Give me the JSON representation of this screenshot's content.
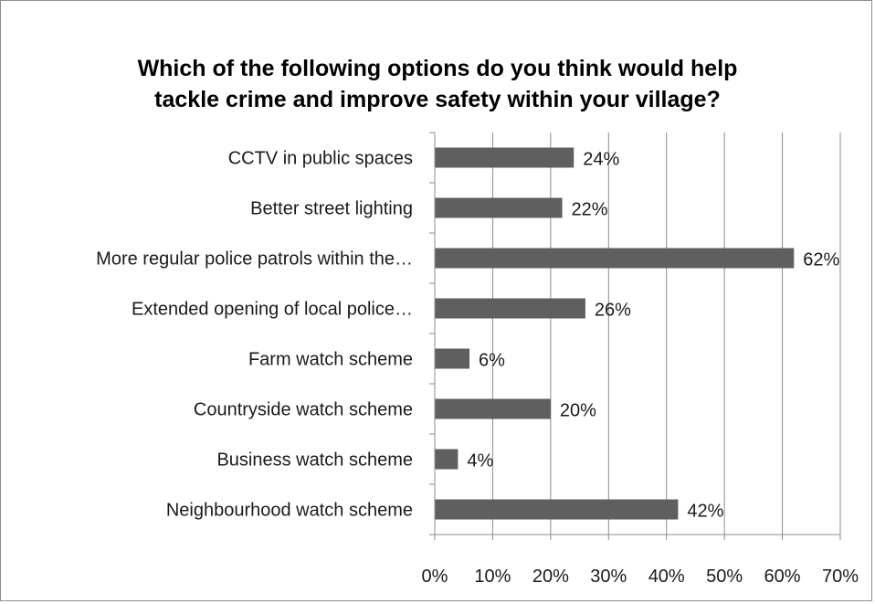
{
  "chart_data": {
    "type": "bar",
    "orientation": "horizontal",
    "title_lines": [
      "Which of the following options do you think would help",
      "tackle crime and improve safety within your village?"
    ],
    "categories": [
      "CCTV in public spaces",
      "Better street lighting",
      "More regular police patrols within the…",
      "Extended opening of local police…",
      "Farm watch scheme",
      "Countryside watch scheme",
      "Business watch scheme",
      "Neighbourhood watch scheme"
    ],
    "values": [
      24,
      22,
      62,
      26,
      6,
      20,
      4,
      42
    ],
    "data_labels": [
      "24%",
      "22%",
      "62%",
      "26%",
      "6%",
      "20%",
      "4%",
      "42%"
    ],
    "x_ticks": [
      0,
      10,
      20,
      30,
      40,
      50,
      60,
      70
    ],
    "x_tick_labels": [
      "0%",
      "10%",
      "20%",
      "30%",
      "40%",
      "50%",
      "60%",
      "70%"
    ],
    "xlim": [
      0,
      70
    ],
    "grid": "vertical",
    "legend": "none",
    "bar_color": "#5f5f5f",
    "grid_color": "#8c8c8c"
  }
}
